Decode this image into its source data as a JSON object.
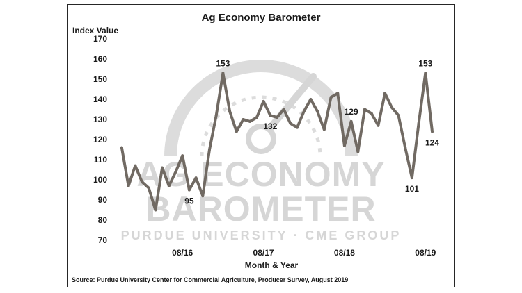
{
  "chart_data": {
    "type": "line",
    "title": "Ag Economy Barometer",
    "ylabel": "Index Value",
    "xlabel": "Month & Year",
    "source": "Source: Purdue University Center for Commercial Agriculture, Producer Survey, August 2019",
    "ylim": [
      70,
      170
    ],
    "y_ticks": [
      "70",
      "80",
      "90",
      "100",
      "110",
      "120",
      "130",
      "140",
      "150",
      "160",
      "170"
    ],
    "x_tick_labels": [
      {
        "label": "08/16",
        "index": 9
      },
      {
        "label": "08/17",
        "index": 21
      },
      {
        "label": "08/18",
        "index": 33
      },
      {
        "label": "08/19",
        "index": 45
      }
    ],
    "x_range": [
      -0.3,
      46
    ],
    "series": [
      {
        "color": "#716a63",
        "values": [
          116,
          97,
          107,
          99,
          96,
          85,
          106,
          97,
          104,
          112,
          95,
          101,
          92,
          115,
          132,
          153,
          134,
          124,
          130,
          129,
          131,
          139,
          132,
          131,
          135,
          128,
          126,
          134,
          140,
          134,
          125,
          141,
          143,
          117,
          129,
          114,
          135,
          133,
          127,
          143,
          136,
          132,
          116,
          101,
          128,
          153,
          124
        ]
      }
    ],
    "data_labels": [
      {
        "text": "95",
        "index": 10,
        "position": "below"
      },
      {
        "text": "153",
        "index": 15,
        "position": "above"
      },
      {
        "text": "132",
        "index": 22,
        "position": "below"
      },
      {
        "text": "129",
        "index": 34,
        "position": "above"
      },
      {
        "text": "101",
        "index": 43,
        "position": "below"
      },
      {
        "text": "153",
        "index": 45,
        "position": "above"
      },
      {
        "text": "124",
        "index": 46,
        "position": "below"
      }
    ],
    "grid": false,
    "legend": "none",
    "watermark": {
      "line1": "AG ECONOMY",
      "line2": "BAROMETER",
      "line3": "PURDUE UNIVERSITY · CME GROUP"
    }
  }
}
